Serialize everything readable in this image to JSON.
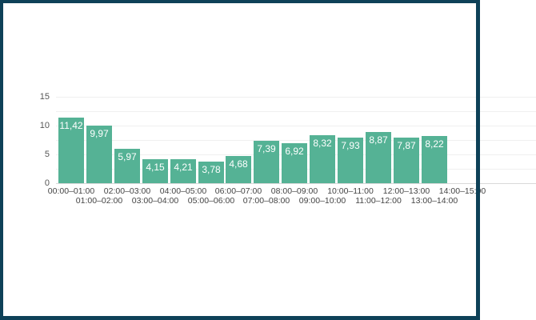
{
  "chart_data": {
    "type": "bar",
    "title": "",
    "xlabel": "",
    "ylabel": "",
    "ylim": [
      0,
      15
    ],
    "yticks": [
      0,
      5,
      10,
      15
    ],
    "grid": true,
    "minor_grid_step": 2.5,
    "legend": null,
    "bar_color": "#55B295",
    "decimal_separator": ",",
    "categories": [
      "00:00–01:00",
      "01:00–02:00",
      "02:00–03:00",
      "03:00–04:00",
      "04:00–05:00",
      "05:00–06:00",
      "06:00–07:00",
      "07:00–08:00",
      "08:00–09:00",
      "09:00–10:00",
      "10:00–11:00",
      "11:00–12:00",
      "12:00–13:00",
      "13:00–14:00",
      "14:00–15:00"
    ],
    "values": [
      11.42,
      9.97,
      5.97,
      4.15,
      4.21,
      3.78,
      4.68,
      7.39,
      6.92,
      8.32,
      7.93,
      8.87,
      7.87,
      8.22,
      null
    ],
    "value_labels": [
      "11,42",
      "9,97",
      "5,97",
      "4,15",
      "4,21",
      "3,78",
      "4,68",
      "7,39",
      "6,92",
      "8,32",
      "7,93",
      "8,87",
      "7,87",
      "8,22",
      ""
    ],
    "note": "Chart is clipped on the right; 14:00–15:00 category label partially visible, its bar not shown"
  },
  "frame": {
    "border_color": "#0E4158"
  }
}
